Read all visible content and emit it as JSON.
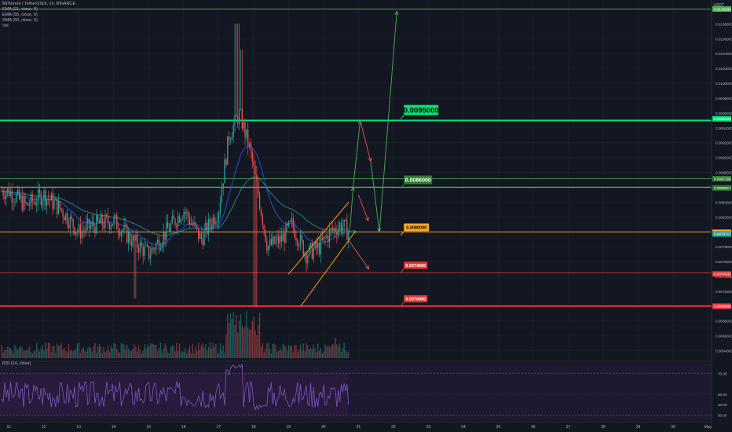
{
  "legend": {
    "symbol": "BitTorrent / TetherUSDt, 1h, BINANCE",
    "ema1": "EMA (21, close, 0)",
    "ema2": "EMA (55, close, 0)",
    "sma": "SMA (50, close, 0)",
    "vol": "Vol",
    "rsi": "RSI (14, close)"
  },
  "axis": {
    "currency": "USDT",
    "price_ticks": [
      "0.0108000",
      "0.0106000",
      "0.0104000",
      "0.0102000",
      "0.0100000",
      "0.0098000",
      "0.0096000",
      "0.0094000",
      "0.0092000",
      "0.0090000",
      "0.0088000",
      "0.0086000",
      "0.0084000",
      "0.0082000",
      "0.0080000",
      "0.0078000",
      "0.0076000",
      "0.0074000",
      "0.0072000",
      "0.0070000",
      "0.0068000",
      "0.0066000",
      "0.0064000"
    ],
    "rsi_ticks": [
      "70.00",
      "50.00",
      "40.00",
      "30.00"
    ],
    "date_ticks": [
      "11",
      "12",
      "13",
      "14",
      "15",
      "16",
      "17",
      "18",
      "19",
      "20",
      "21",
      "22",
      "23",
      "24",
      "25",
      "26",
      "27",
      "28",
      "29",
      "30",
      "May"
    ]
  },
  "price_tags": [
    {
      "label": "0.0109999",
      "color": "#4caf50"
    },
    {
      "label": "0.0095222",
      "color": "#00e676"
    },
    {
      "label": "0.0087158",
      "color": "#2e7d32"
    },
    {
      "label": "0.0085917",
      "color": "#2e7d32"
    },
    {
      "label": "0.0079942",
      "color": "#f9a825"
    },
    {
      "label": "0.0079717",
      "color": "#26a69a"
    },
    {
      "label": "0.0074333",
      "color": "#e53935"
    },
    {
      "label": "0.0069990",
      "color": "#f23645"
    }
  ],
  "annotations": [
    {
      "label": "0.0095000",
      "color": "#00e676",
      "text_color": "#000000"
    },
    {
      "label": "0.0086000",
      "color": "#2e7d32",
      "text_color": "#ffffff"
    },
    {
      "label": "0.0080000",
      "color": "#f9a825",
      "text_color": "#000000"
    },
    {
      "label": "0.0074500",
      "color": "#e53935",
      "text_color": "#ffffff"
    },
    {
      "label": "0.0070000",
      "color": "#e53935",
      "text_color": "#ffffff"
    }
  ],
  "colors": {
    "background": "#131722",
    "rsi_background": "#2a1b3d",
    "up": "#26a69a",
    "down": "#ef5350",
    "ema1": "#2962ff",
    "ema2": "#26a69a",
    "rsi_line": "#7e57c2",
    "channel": "#ff9800",
    "target_arrow": "#4caf50",
    "drop_arrow": "#ef5350"
  },
  "chart_data": {
    "type": "candlestick",
    "title": "BitTorrent / TetherUSDt, 1h, BINANCE",
    "x_axis": [
      "11",
      "12",
      "13",
      "14",
      "15",
      "16",
      "17",
      "18",
      "19",
      "20",
      "21",
      "22",
      "23",
      "24",
      "25",
      "26",
      "27",
      "28",
      "29",
      "30",
      "May"
    ],
    "ylim": [
      0.0063,
      0.0111
    ],
    "key_levels": [
      0.011,
      0.0095,
      0.0086,
      0.008,
      0.00745,
      0.007
    ],
    "close_path": [
      {
        "x": 11.0,
        "y": 0.00855
      },
      {
        "x": 11.5,
        "y": 0.00835
      },
      {
        "x": 12.0,
        "y": 0.0085
      },
      {
        "x": 12.5,
        "y": 0.0083
      },
      {
        "x": 13.0,
        "y": 0.008
      },
      {
        "x": 13.5,
        "y": 0.0081
      },
      {
        "x": 14.0,
        "y": 0.00815
      },
      {
        "x": 14.5,
        "y": 0.0079
      },
      {
        "x": 15.0,
        "y": 0.0077
      },
      {
        "x": 15.5,
        "y": 0.008
      },
      {
        "x": 16.0,
        "y": 0.0083
      },
      {
        "x": 16.5,
        "y": 0.0079
      },
      {
        "x": 17.0,
        "y": 0.0083
      },
      {
        "x": 17.3,
        "y": 0.0093
      },
      {
        "x": 17.6,
        "y": 0.0096
      },
      {
        "x": 17.9,
        "y": 0.0091
      },
      {
        "x": 18.1,
        "y": 0.0086
      },
      {
        "x": 18.4,
        "y": 0.0078
      },
      {
        "x": 18.8,
        "y": 0.0079
      },
      {
        "x": 19.1,
        "y": 0.0081
      },
      {
        "x": 19.5,
        "y": 0.0077
      },
      {
        "x": 19.9,
        "y": 0.0078
      },
      {
        "x": 20.2,
        "y": 0.008
      },
      {
        "x": 20.5,
        "y": 0.0081
      },
      {
        "x": 20.7,
        "y": 0.008
      }
    ],
    "rsi_last": 52
  }
}
